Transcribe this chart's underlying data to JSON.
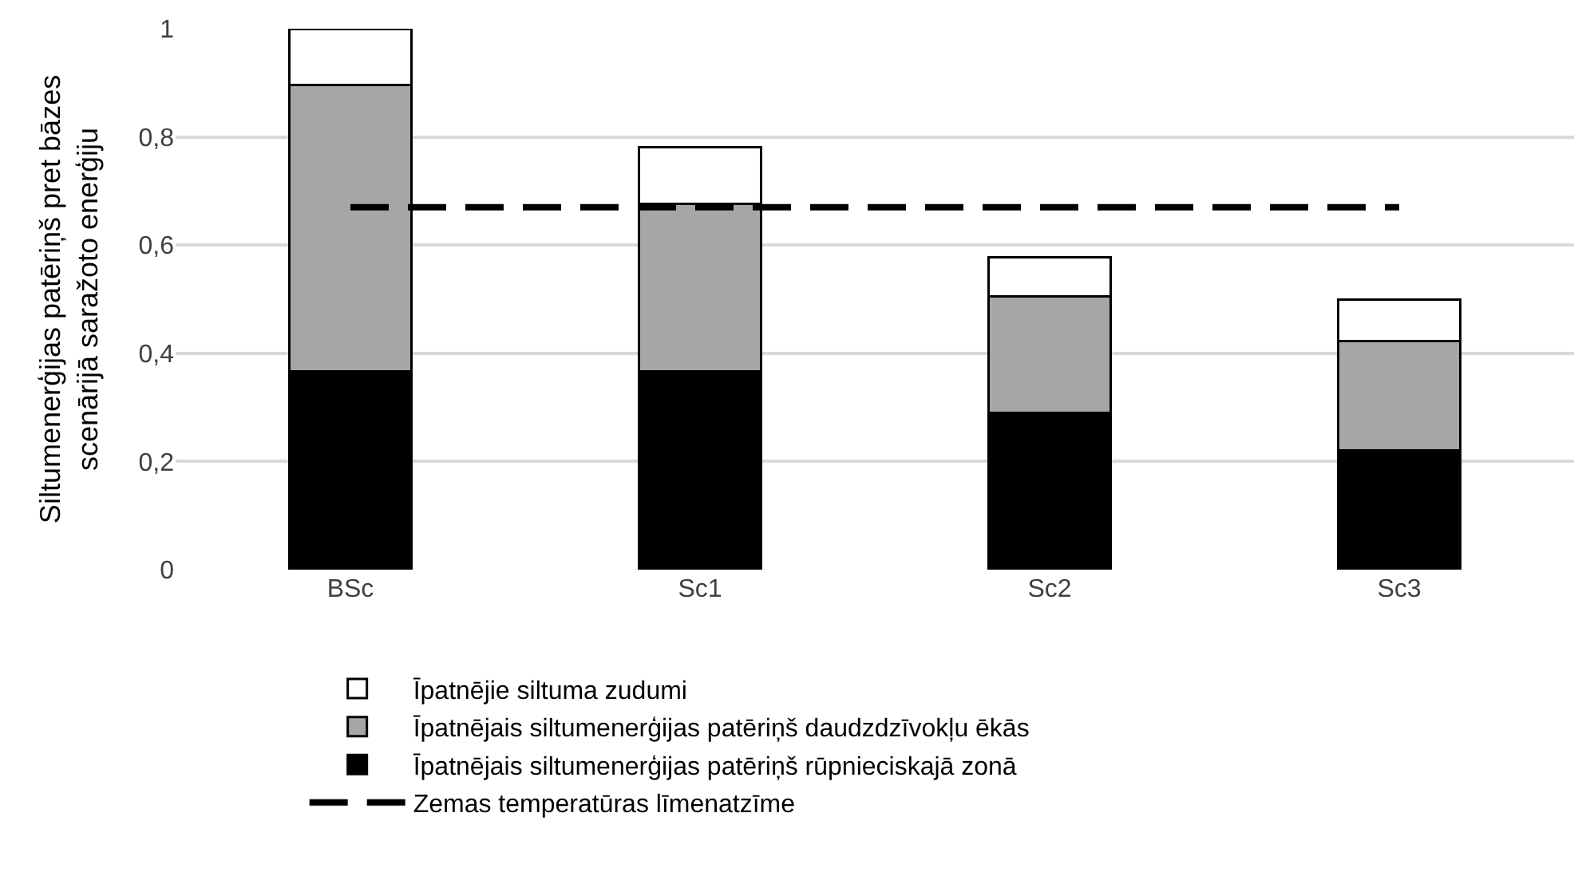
{
  "chart_data": {
    "type": "bar",
    "stacked": true,
    "ylabel": "Siltumenerģijas patēriņš pret bāzes\nscenārijā saražoto enerģiju",
    "categories": [
      "BSc",
      "Sc1",
      "Sc2",
      "Sc3"
    ],
    "series": [
      {
        "name": "Īpatnējais siltumenerģijas patēriņš rūpnieciskajā zonā",
        "color": "#000000",
        "values": [
          0.366,
          0.367,
          0.29,
          0.221
        ]
      },
      {
        "name": "Īpatnējais siltumenerģijas patēriņš daudzdzīvokļu ēkās",
        "color": "#a6a6a6",
        "values": [
          0.53,
          0.31,
          0.215,
          0.202
        ]
      },
      {
        "name": "Īpatnējie siltuma zudumi",
        "color": "#ffffff",
        "values": [
          0.104,
          0.104,
          0.072,
          0.077
        ]
      },
      {
        "name": "Zemas temperatūras līmenatzīme",
        "type": "line",
        "color": "#000000",
        "line_style": "dashed",
        "marker": "none",
        "values": [
          0.67,
          0.67,
          0.67,
          0.67
        ]
      }
    ],
    "ylim": [
      0,
      1
    ],
    "yticks": [
      0,
      {
        "value": 0.2,
        "label": "0,2"
      },
      {
        "value": 0.4,
        "label": "0,4"
      },
      {
        "value": 0.6,
        "label": "0,6"
      },
      {
        "value": 0.8,
        "label": "0,8"
      },
      1
    ],
    "grid": "y",
    "legend": "bottom"
  }
}
